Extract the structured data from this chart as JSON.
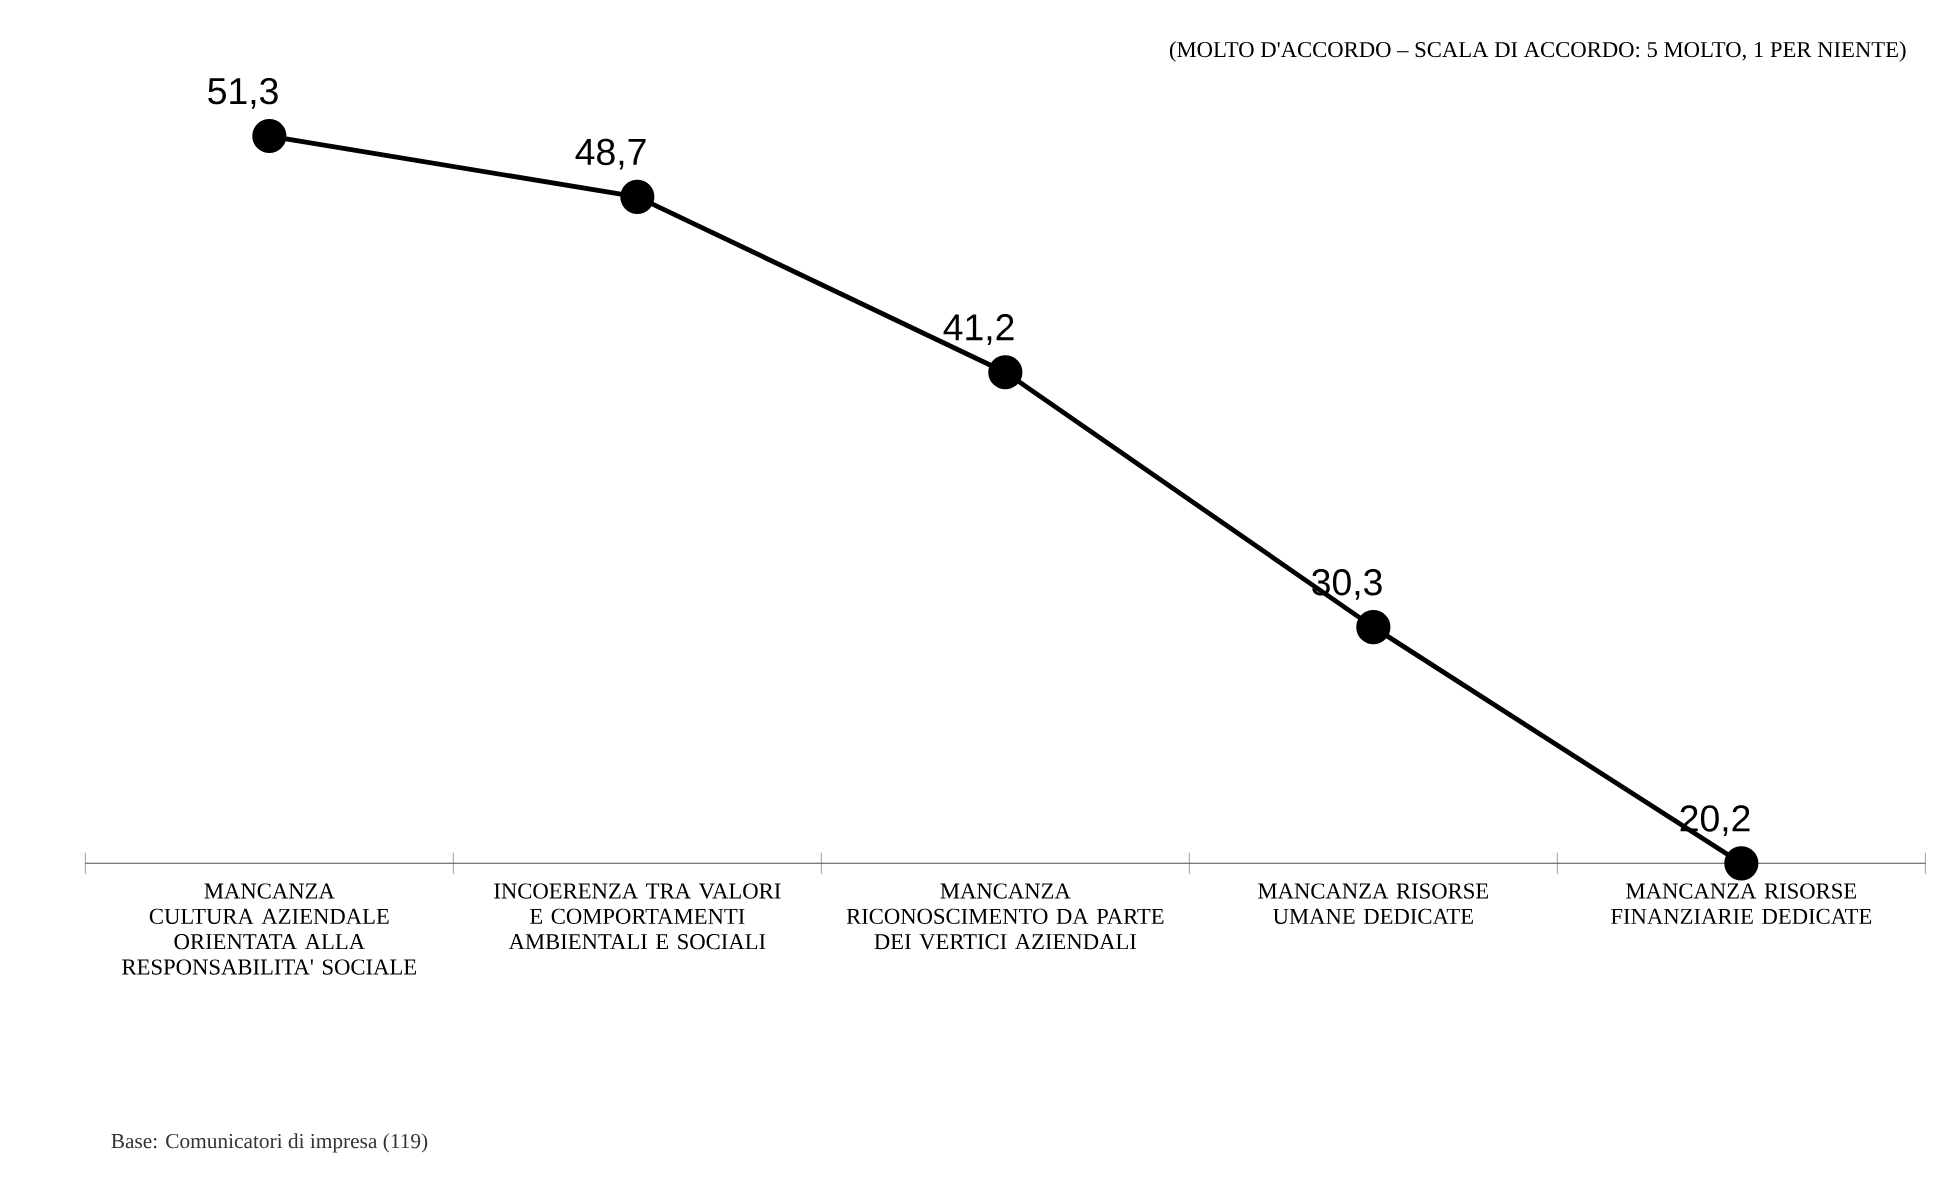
{
  "chart_data": {
    "type": "line",
    "subtitle": "(MOLTO D'ACCORDO – SCALA DI ACCORDO: 5 MOLTO, 1 PER NIENTE)",
    "categories": [
      "MANCANZA CULTURA AZIENDALE ORIENTATA ALLA RESPONSABILITA' SOCIALE",
      "INCOERENZA TRA VALORI E COMPORTAMENTI AMBIENTALI E SOCIALI",
      "MANCANZA RICONOSCIMENTO DA PARTE DEI VERTICI AZIENDALI",
      "MANCANZA RISORSE UMANE DEDICATE",
      "MANCANZA RISORSE FINANZIARIE DEDICATE"
    ],
    "series": [
      {
        "color": "#000000",
        "values": [
          51.3,
          48.7,
          41.2,
          30.3,
          20.2
        ],
        "value_labels": [
          "51,3",
          "48,7",
          "41,2",
          "30,3",
          "20,2"
        ]
      }
    ],
    "marker": "circle",
    "line_style": "solid",
    "grid": false,
    "annotations": [
      "Base: Comunicatori di impresa (119)"
    ]
  }
}
